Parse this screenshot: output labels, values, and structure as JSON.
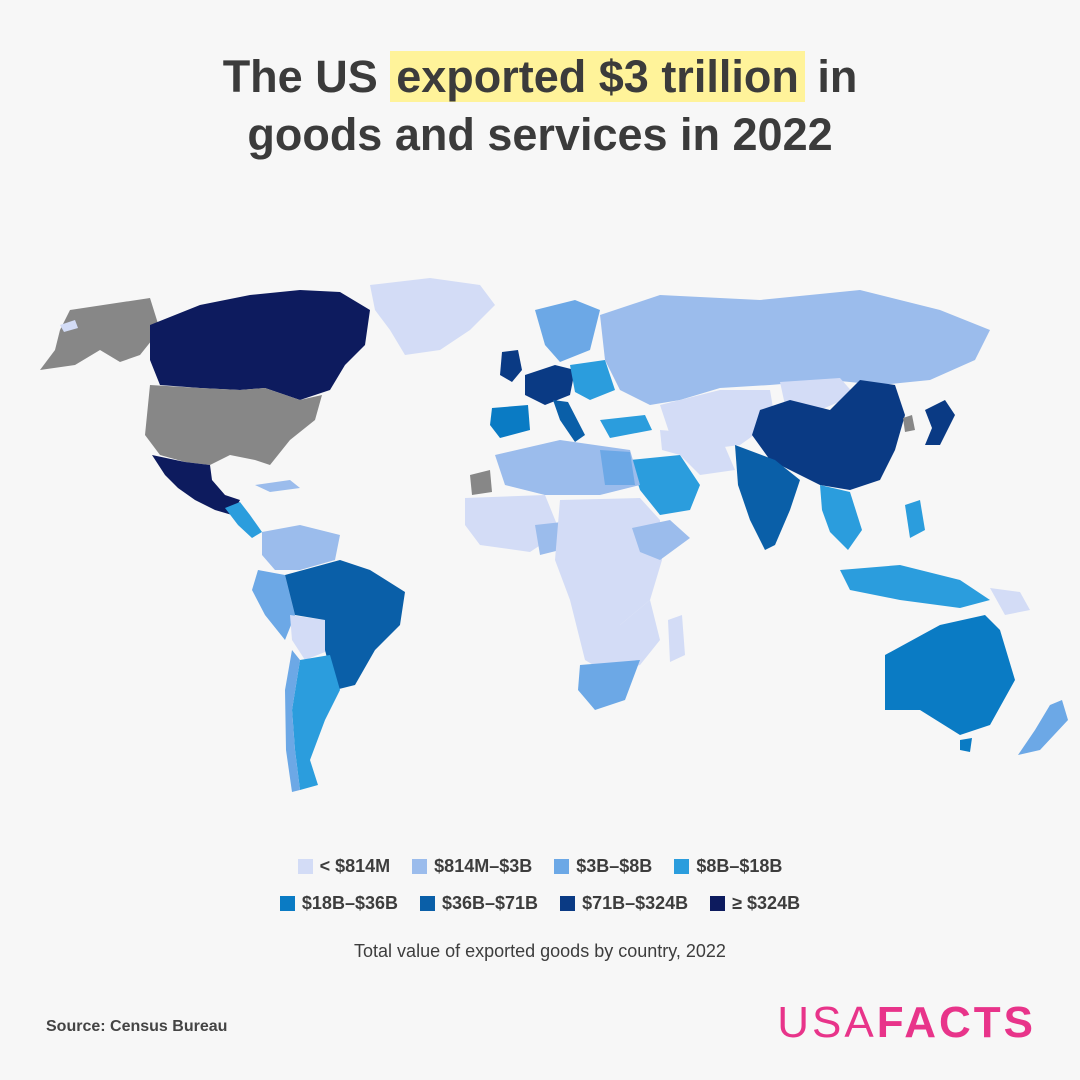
{
  "header": {
    "title_pre": "The US ",
    "title_highlight": "exported $3 trillion",
    "title_post": " in",
    "title_line2": "goods and services in 2022"
  },
  "legend": {
    "items": [
      {
        "label": "< $814M",
        "color": "#d3dcf6"
      },
      {
        "label": "$814M–$3B",
        "color": "#9bbcec"
      },
      {
        "label": "$3B–$8B",
        "color": "#6ca8e6"
      },
      {
        "label": "$8B–$18B",
        "color": "#2b9ddd"
      },
      {
        "label": "$18B–$36B",
        "color": "#0a7bc4"
      },
      {
        "label": "$36B–$71B",
        "color": "#0a5fa8"
      },
      {
        "label": "$71B–$324B",
        "color": "#0a3a84"
      },
      {
        "label": "≥ $324B",
        "color": "#0d1b5e"
      }
    ]
  },
  "subtitle": "Total value of exported goods by country, 2022",
  "source": "Source: Census Bureau",
  "logo": {
    "light": "USA",
    "bold": "FACTS",
    "color": "#e8348a"
  },
  "map_colors": {
    "no_data": "#878787"
  }
}
